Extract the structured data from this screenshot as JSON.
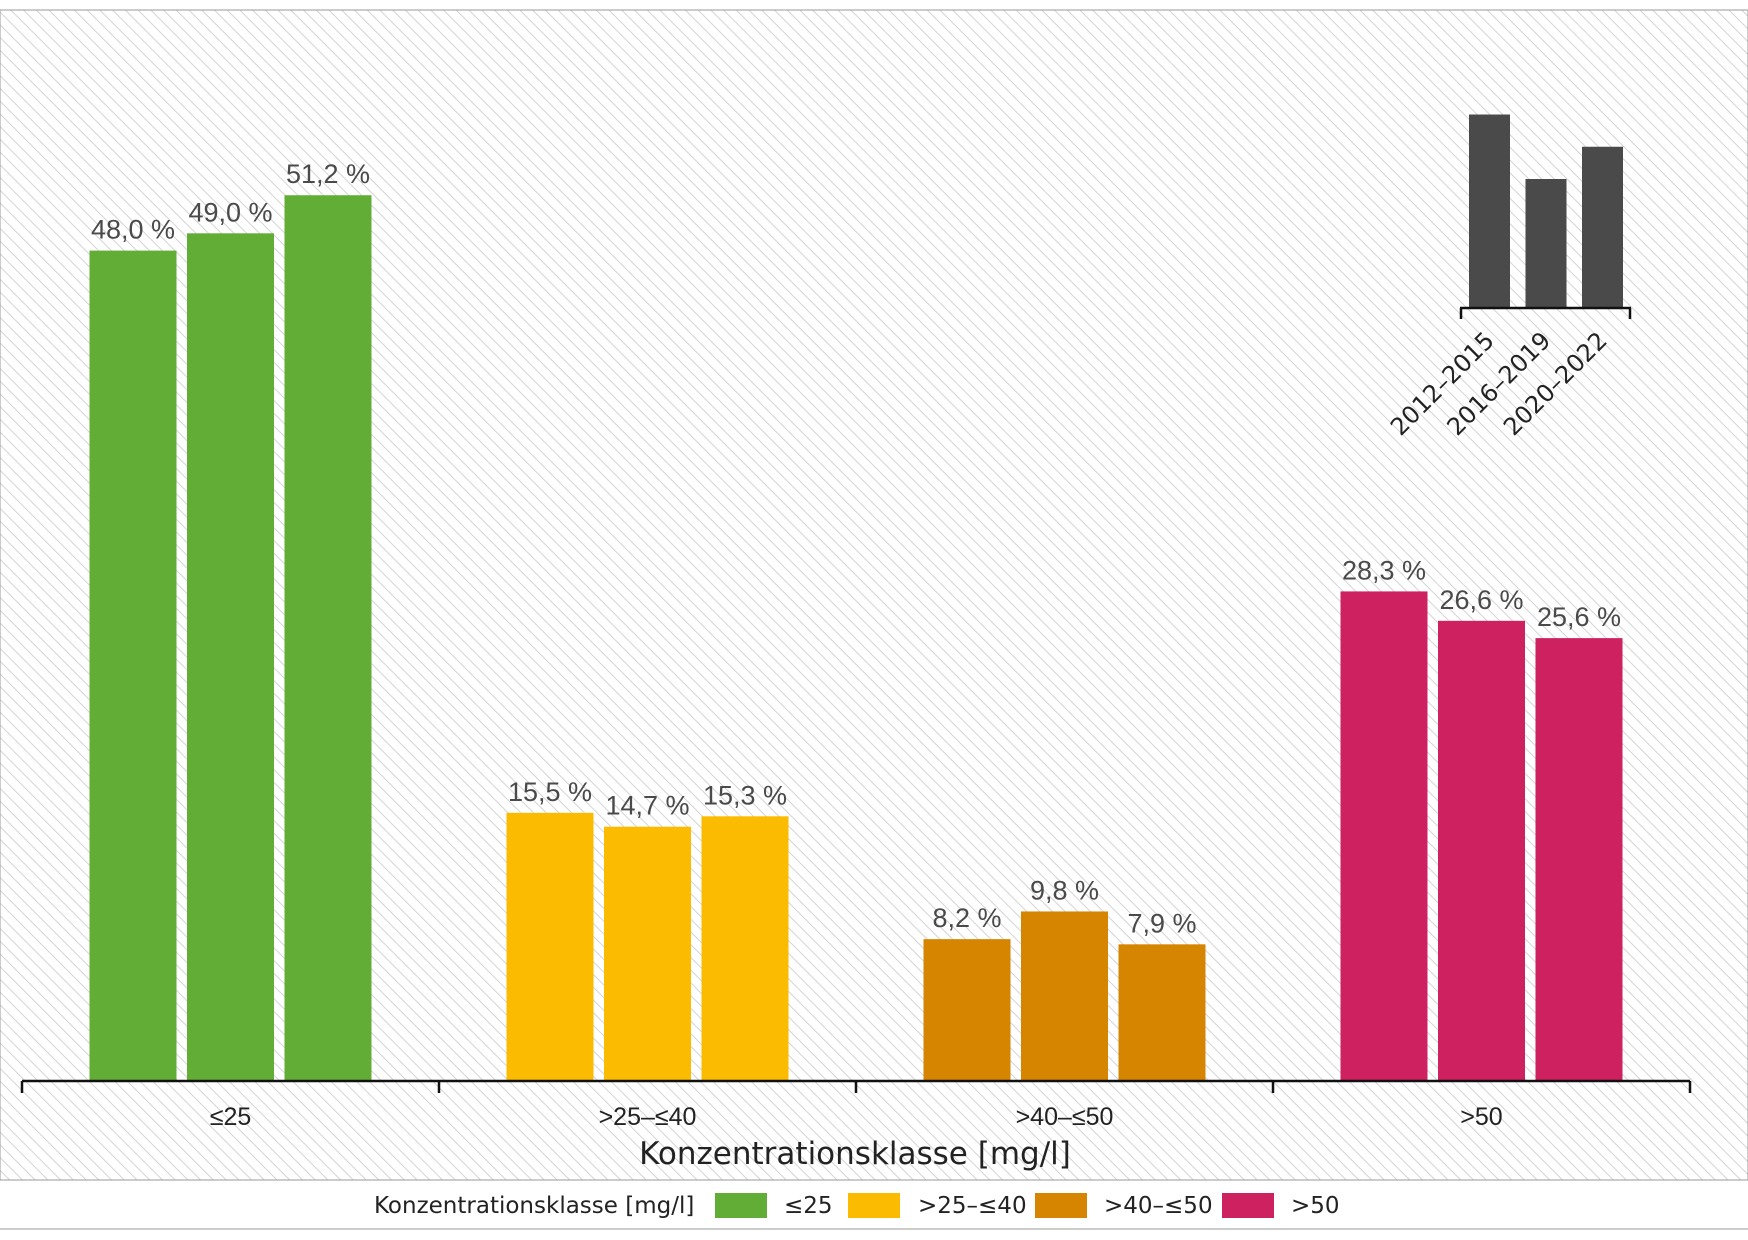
{
  "chart_data": {
    "type": "bar",
    "xlabel": "Konzentrationsklasse [mg/l]",
    "categories": [
      "≤25",
      ">25–≤40",
      ">40–≤50",
      ">50"
    ],
    "periods": [
      "2012–2015",
      "2016–2019",
      "2020–2022"
    ],
    "values": [
      [
        48.0,
        49.0,
        51.2
      ],
      [
        15.5,
        14.7,
        15.3
      ],
      [
        8.2,
        9.8,
        7.9
      ],
      [
        28.3,
        26.6,
        25.6
      ]
    ],
    "value_labels": [
      [
        "48,0 %",
        "49,0 %",
        "51,2 %"
      ],
      [
        "15,5 %",
        "14,7 %",
        "15,3 %"
      ],
      [
        "8,2 %",
        "9,8 %",
        "7,9 %"
      ],
      [
        "28,3 %",
        "26,6 %",
        "25,6 %"
      ]
    ],
    "colors": [
      "#62ad36",
      "#fbbb00",
      "#d68500",
      "#ce2160"
    ],
    "inset_color": "#4a4a4a",
    "inset_values": [
      3,
      2,
      2.5
    ],
    "legend": {
      "title": "Konzentrationsklasse [mg/l]",
      "placement": "bottom",
      "entries": [
        "≤25",
        ">25–≤40",
        ">40–≤50",
        ">50"
      ]
    }
  }
}
